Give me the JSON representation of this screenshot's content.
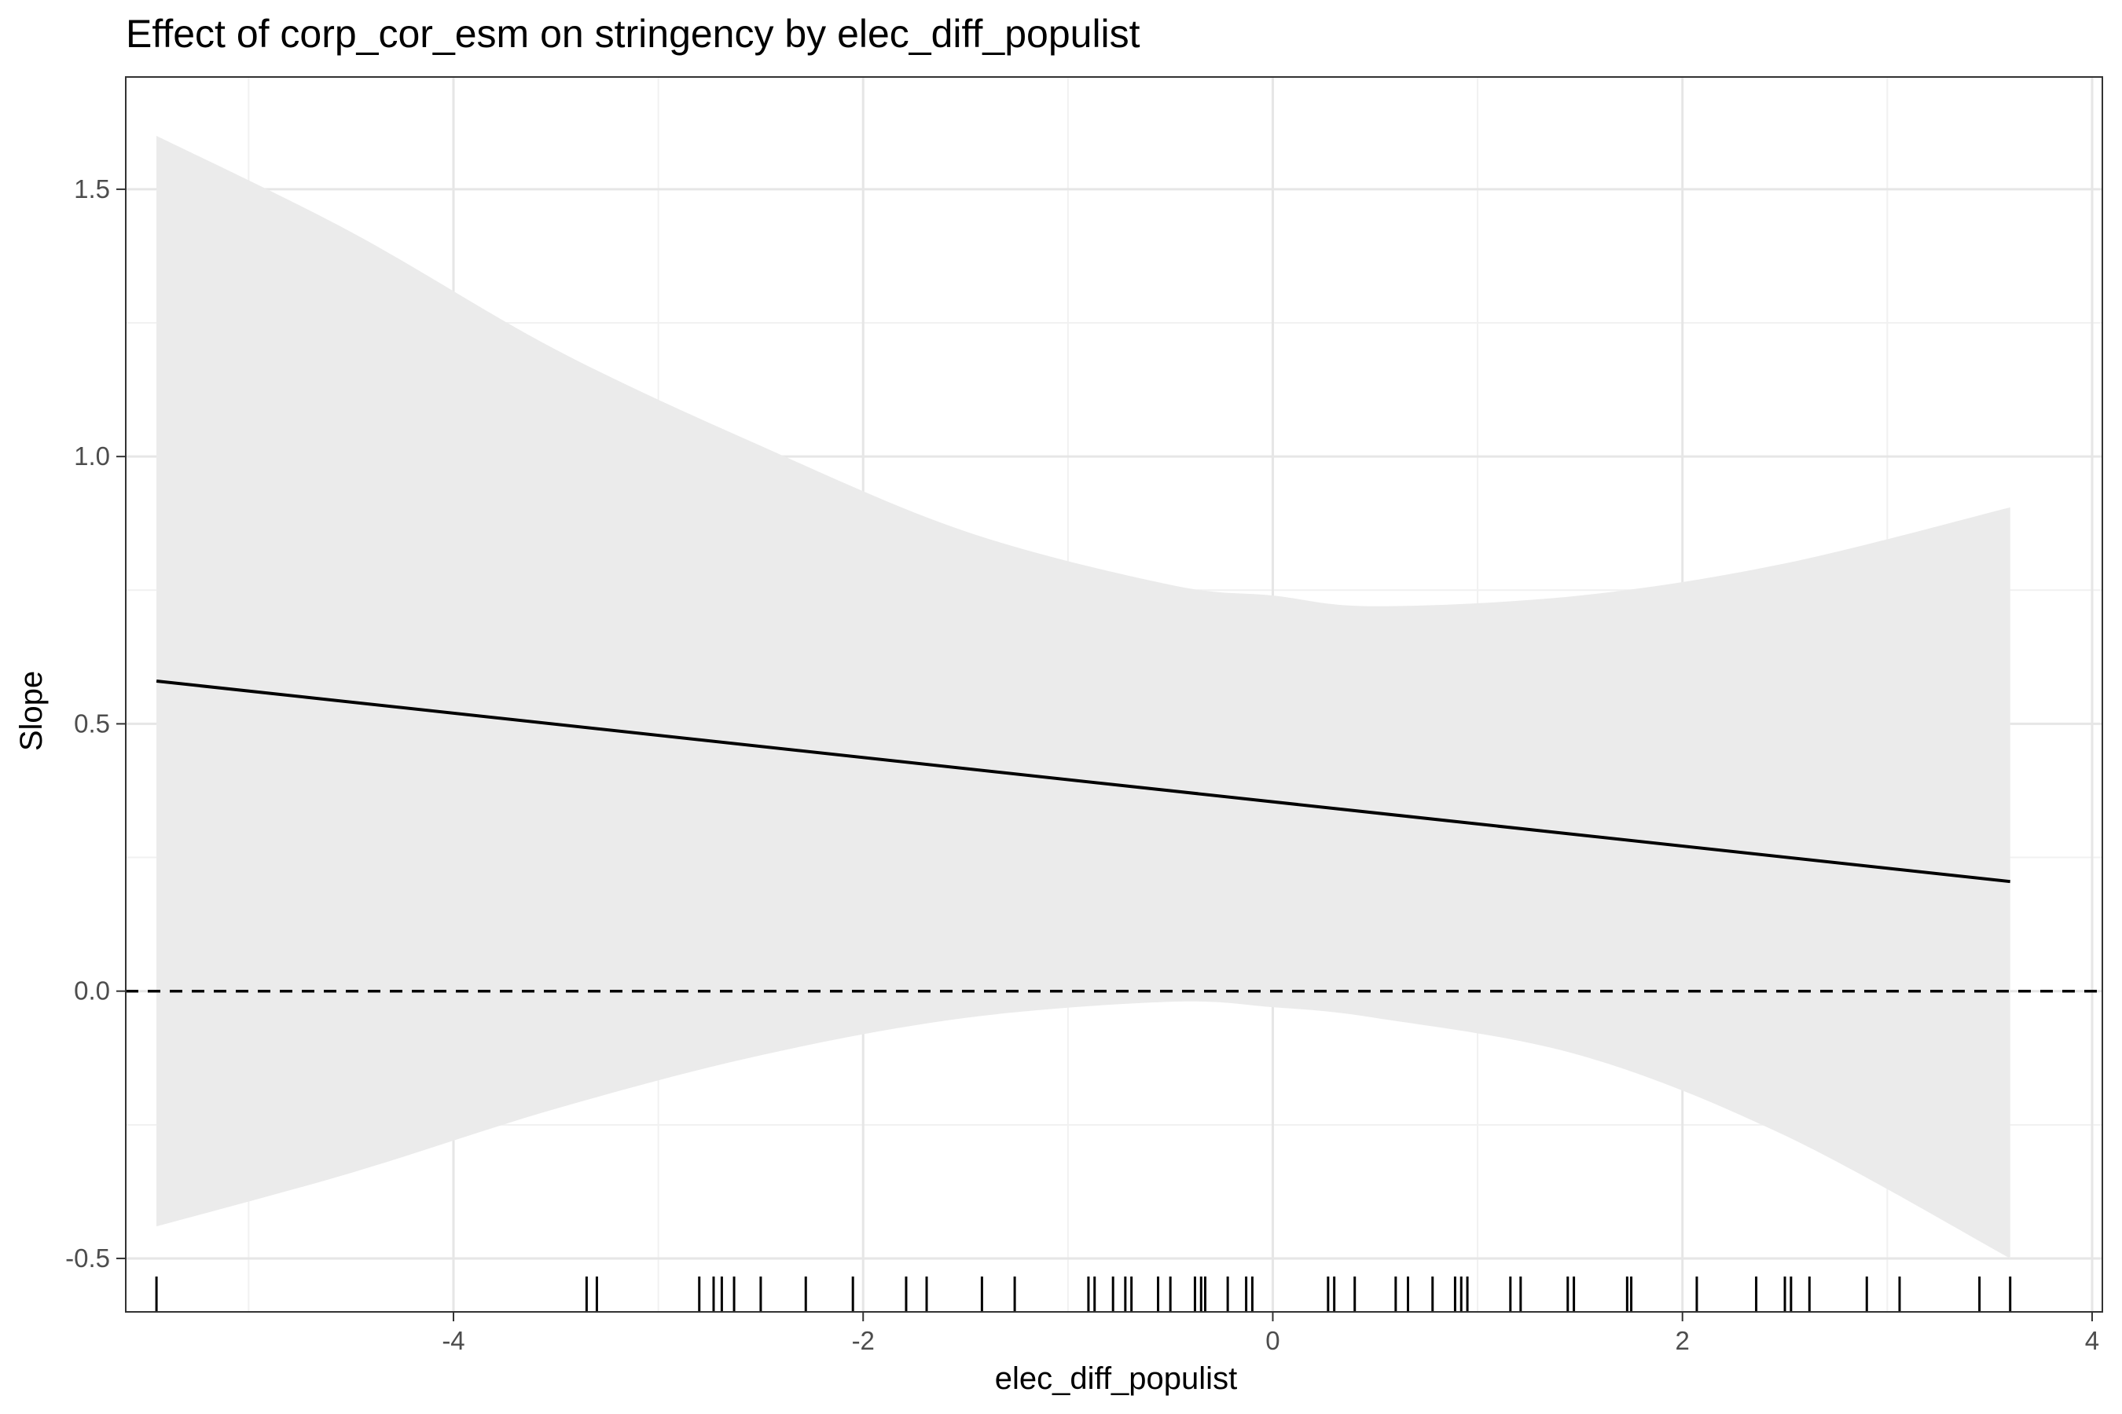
{
  "chart_data": {
    "type": "line",
    "title": "Effect of corp_cor_esm on stringency by elec_diff_populist",
    "xlabel": "elec_diff_populist",
    "ylabel": "Slope",
    "xlim": [
      -5.6,
      4.05
    ],
    "ylim": [
      -0.6,
      1.71
    ],
    "x_ticks": [
      -4,
      -2,
      0,
      2,
      4
    ],
    "x_tick_labels": [
      "-4",
      "-2",
      "0",
      "2",
      "4"
    ],
    "y_ticks": [
      -0.5,
      0.0,
      0.5,
      1.0,
      1.5
    ],
    "y_tick_labels": [
      "-0.5",
      "0.0",
      "0.5",
      "1.0",
      "1.5"
    ],
    "grid": true,
    "reference_line": {
      "y": 0,
      "style": "dashed"
    },
    "series": [
      {
        "kind": "line",
        "x": [
          -5.45,
          3.6
        ],
        "y": [
          0.58,
          0.205
        ],
        "color": "#000000"
      },
      {
        "kind": "confidence_band",
        "x": [
          -5.45,
          -4.5,
          -3.5,
          -2.5,
          -1.5,
          -0.5,
          0,
          0.5,
          1.5,
          2.5,
          3.6
        ],
        "upper": [
          1.6,
          1.42,
          1.2,
          1.02,
          0.86,
          0.76,
          0.74,
          0.72,
          0.74,
          0.8,
          0.905
        ],
        "lower": [
          -0.44,
          -0.34,
          -0.22,
          -0.12,
          -0.05,
          -0.02,
          -0.03,
          -0.05,
          -0.12,
          -0.27,
          -0.5
        ],
        "color": "#ebebeb"
      }
    ],
    "rug_x": [
      -5.45,
      -3.35,
      -3.3,
      -2.8,
      -2.73,
      -2.69,
      -2.63,
      -2.5,
      -2.28,
      -2.05,
      -1.79,
      -1.69,
      -1.42,
      -1.26,
      -0.9,
      -0.87,
      -0.78,
      -0.72,
      -0.69,
      -0.56,
      -0.5,
      -0.38,
      -0.35,
      -0.33,
      -0.22,
      -0.13,
      -0.1,
      0.27,
      0.3,
      0.4,
      0.6,
      0.66,
      0.78,
      0.89,
      0.92,
      0.95,
      1.16,
      1.21,
      1.44,
      1.47,
      1.73,
      1.75,
      2.07,
      2.36,
      2.5,
      2.53,
      2.62,
      2.9,
      3.06,
      3.45,
      3.6
    ]
  }
}
